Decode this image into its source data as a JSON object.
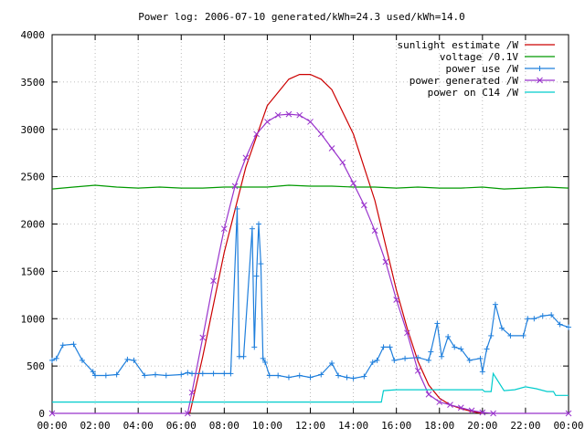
{
  "chart_data": {
    "type": "line",
    "title": "Power log: 2006-07-10 generated/kWh=24.3 used/kWh=14.0",
    "xlabel": "",
    "ylabel": "",
    "x_unit": "hours of day",
    "xlim": [
      0,
      24
    ],
    "ylim": [
      0,
      4000
    ],
    "grid": true,
    "legend_position": "top-right",
    "x_ticks": [
      {
        "value": 0,
        "label": "00:00"
      },
      {
        "value": 2,
        "label": "02:00"
      },
      {
        "value": 4,
        "label": "04:00"
      },
      {
        "value": 6,
        "label": "06:00"
      },
      {
        "value": 8,
        "label": "08:00"
      },
      {
        "value": 10,
        "label": "10:00"
      },
      {
        "value": 12,
        "label": "12:00"
      },
      {
        "value": 14,
        "label": "14:00"
      },
      {
        "value": 16,
        "label": "16:00"
      },
      {
        "value": 18,
        "label": "18:00"
      },
      {
        "value": 20,
        "label": "20:00"
      },
      {
        "value": 22,
        "label": "22:00"
      },
      {
        "value": 24,
        "label": "00:00"
      }
    ],
    "y_ticks": [
      {
        "value": 0,
        "label": "0"
      },
      {
        "value": 500,
        "label": "500"
      },
      {
        "value": 1000,
        "label": "1000"
      },
      {
        "value": 1500,
        "label": "1500"
      },
      {
        "value": 2000,
        "label": "2000"
      },
      {
        "value": 2500,
        "label": "2500"
      },
      {
        "value": 3000,
        "label": "3000"
      },
      {
        "value": 3500,
        "label": "3500"
      },
      {
        "value": 4000,
        "label": "4000"
      }
    ],
    "series": [
      {
        "name": "sunlight estimate /W",
        "color": "#cc0000",
        "marker": "none",
        "x": [
          6.4,
          7,
          8,
          9,
          10,
          11,
          11.5,
          12,
          12.5,
          13,
          14,
          15,
          16,
          16.5,
          17,
          17.5,
          18,
          18.5,
          19,
          19.5,
          20
        ],
        "y": [
          0,
          600,
          1700,
          2600,
          3250,
          3530,
          3580,
          3580,
          3530,
          3420,
          2950,
          2250,
          1300,
          900,
          550,
          300,
          160,
          90,
          50,
          20,
          0
        ]
      },
      {
        "name": "voltage /0.1V",
        "color": "#009900",
        "marker": "none",
        "x": [
          0,
          1,
          2,
          3,
          4,
          5,
          6,
          7,
          8,
          9,
          10,
          11,
          12,
          13,
          14,
          15,
          16,
          17,
          18,
          19,
          20,
          21,
          22,
          23,
          24
        ],
        "y": [
          2370,
          2390,
          2410,
          2390,
          2380,
          2390,
          2380,
          2380,
          2390,
          2390,
          2390,
          2410,
          2400,
          2400,
          2390,
          2390,
          2380,
          2390,
          2380,
          2380,
          2390,
          2370,
          2380,
          2390,
          2380
        ]
      },
      {
        "name": "power use /W",
        "color": "#1f7fdc",
        "marker": "plus",
        "x": [
          0,
          0.2,
          0.5,
          1.0,
          1.4,
          1.9,
          2.0,
          2.5,
          3.0,
          3.5,
          3.8,
          4.3,
          4.8,
          5.3,
          6.0,
          6.3,
          6.5,
          7.0,
          7.5,
          8.0,
          8.3,
          8.6,
          8.7,
          8.9,
          9.3,
          9.4,
          9.5,
          9.6,
          9.7,
          9.8,
          9.9,
          10.1,
          10.5,
          11.0,
          11.5,
          12.0,
          12.5,
          13.0,
          13.3,
          13.7,
          14.0,
          14.5,
          14.9,
          15.1,
          15.4,
          15.7,
          15.9,
          16.4,
          17.0,
          17.5,
          17.6,
          17.9,
          18.1,
          18.4,
          18.7,
          19.0,
          19.4,
          19.9,
          20.0,
          20.2,
          20.4,
          20.6,
          20.9,
          21.3,
          21.9,
          22.1,
          22.4,
          22.8,
          23.2,
          23.6,
          24.0
        ],
        "y": [
          560,
          580,
          720,
          730,
          560,
          440,
          400,
          400,
          410,
          570,
          560,
          400,
          410,
          400,
          410,
          430,
          420,
          420,
          420,
          420,
          420,
          2160,
          600,
          600,
          1950,
          700,
          1450,
          2000,
          1580,
          580,
          540,
          400,
          400,
          380,
          400,
          380,
          410,
          530,
          400,
          380,
          370,
          390,
          540,
          560,
          700,
          700,
          560,
          580,
          590,
          560,
          650,
          950,
          600,
          810,
          700,
          680,
          560,
          580,
          440,
          680,
          820,
          1150,
          900,
          820,
          820,
          1000,
          1000,
          1030,
          1040,
          940,
          910
        ]
      },
      {
        "name": "power generated /W",
        "color": "#9933cc",
        "marker": "cross",
        "x": [
          0,
          6.3,
          6.5,
          7,
          7.5,
          8,
          8.5,
          9,
          9.5,
          10,
          10.5,
          11,
          11.5,
          12,
          12.5,
          13,
          13.5,
          14,
          14.5,
          15,
          15.5,
          16,
          16.5,
          17,
          17.5,
          18,
          18.5,
          19,
          19.5,
          20,
          20.5,
          24
        ],
        "y": [
          0,
          0,
          220,
          800,
          1400,
          1950,
          2400,
          2700,
          2950,
          3080,
          3150,
          3160,
          3150,
          3080,
          2950,
          2800,
          2650,
          2430,
          2200,
          1930,
          1600,
          1200,
          850,
          450,
          200,
          120,
          90,
          60,
          30,
          10,
          0,
          0
        ]
      },
      {
        "name": "power on C14 /W",
        "color": "#00cccc",
        "marker": "none",
        "x": [
          0,
          6.5,
          7,
          9,
          11,
          13,
          15.3,
          15.4,
          16,
          18.5,
          20,
          20.1,
          20.4,
          20.5,
          21,
          21.5,
          22,
          22.5,
          23,
          23.3,
          23.4,
          24
        ],
        "y": [
          120,
          120,
          120,
          120,
          120,
          120,
          120,
          240,
          250,
          250,
          250,
          230,
          230,
          420,
          240,
          250,
          280,
          260,
          230,
          230,
          190,
          190
        ]
      }
    ]
  }
}
